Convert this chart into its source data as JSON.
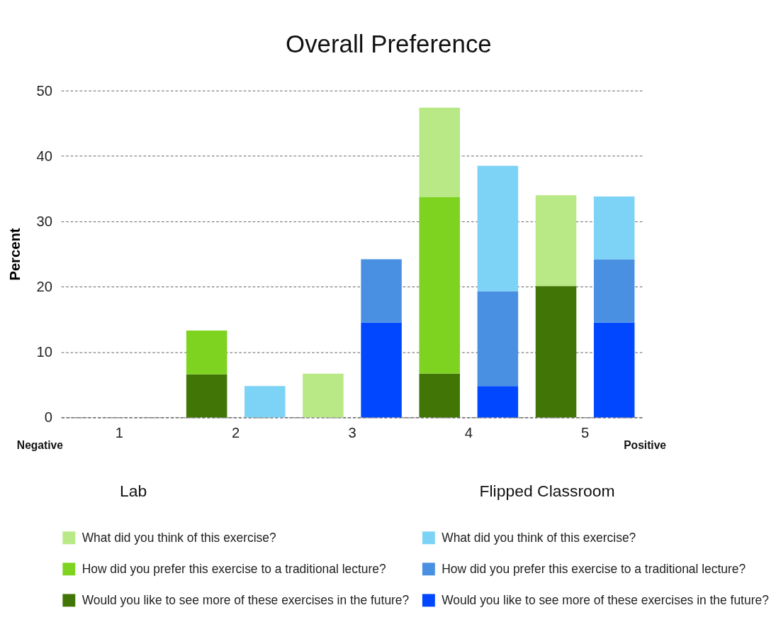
{
  "chart_data": {
    "type": "bar",
    "title": "Overall Preference",
    "ylabel": "Percent",
    "categories": [
      "1",
      null,
      "2",
      null,
      "3",
      null,
      "4",
      null,
      "5",
      null
    ],
    "stacked": true,
    "legend_title": [
      "Lab",
      "Flipped Classroom"
    ],
    "series": [
      {
        "name": "Would you like to see more of these exercises in the future?",
        "color": "#417505",
        "values": [
          0,
          null,
          6.6,
          null,
          0,
          null,
          6.7,
          null,
          20.1,
          null
        ]
      },
      {
        "name": "How did you prefer this exercise to a traditional lecture?",
        "color": "#7ed321",
        "values": [
          0,
          null,
          6.7,
          null,
          0,
          null,
          27.0,
          null,
          0,
          null
        ]
      },
      {
        "name": "What did you think of this exercise?",
        "color": "#b8e986",
        "values": [
          0,
          null,
          0,
          null,
          6.7,
          null,
          13.7,
          null,
          13.9,
          null
        ]
      },
      {
        "name": "Would you like to see more of these exercises in the future?",
        "color": "#0047ff",
        "values": [
          null,
          0,
          null,
          0,
          null,
          14.5,
          null,
          4.8,
          null,
          14.5
        ]
      },
      {
        "name": "How did you prefer this exercise to a traditional lecture?",
        "color": "#4a90e2",
        "values": [
          null,
          0,
          null,
          0,
          null,
          9.7,
          null,
          14.5,
          null,
          9.7
        ]
      },
      {
        "name": "What did you think of this exercise?",
        "color": "#7dd3f5",
        "values": [
          null,
          0,
          null,
          4.8,
          null,
          0,
          null,
          19.2,
          null,
          9.6
        ]
      }
    ],
    "ylim": [
      0,
      50
    ],
    "yticks": [
      0,
      10,
      20,
      30,
      40,
      50
    ],
    "grid": "y",
    "legend": "bottom",
    "annotations": [
      "Negative",
      "Positive"
    ]
  }
}
